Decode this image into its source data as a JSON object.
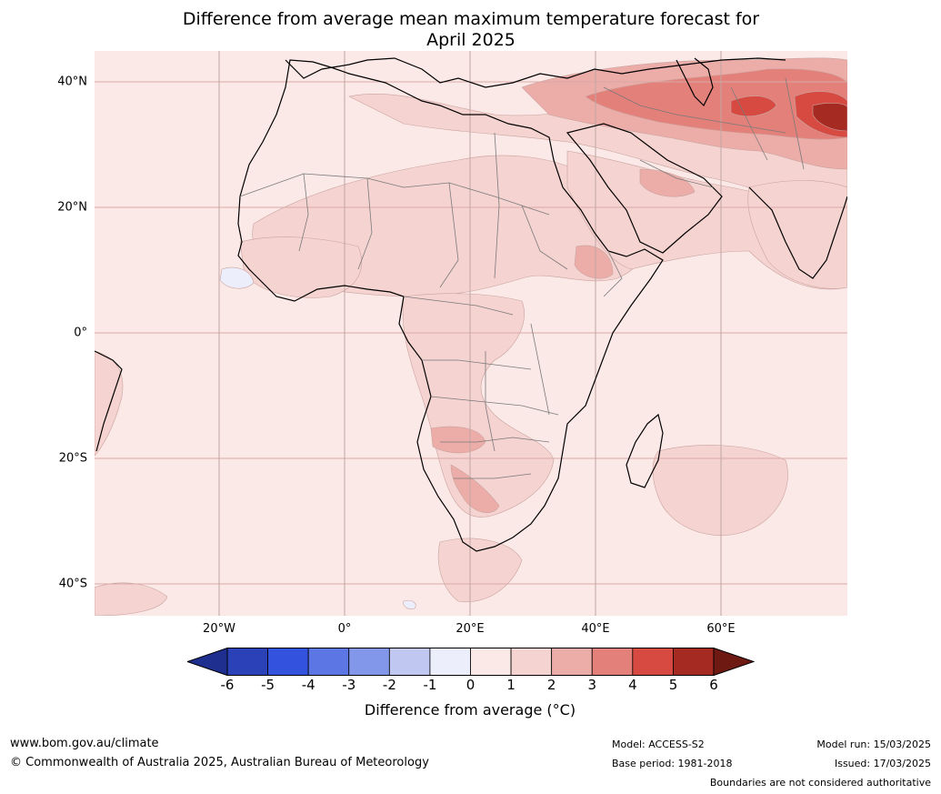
{
  "title": {
    "line1": "Difference from average mean maximum temperature forecast for",
    "line2": "April 2025"
  },
  "axes": {
    "lat_labels": [
      "40°N",
      "20°N",
      "0°",
      "20°S",
      "40°S"
    ],
    "lon_labels": [
      "20°W",
      "0°",
      "20°E",
      "40°E",
      "60°E"
    ]
  },
  "colorbar": {
    "ticks": [
      "-6",
      "-5",
      "-4",
      "-3",
      "-2",
      "-1",
      "0",
      "1",
      "2",
      "3",
      "4",
      "5",
      "6"
    ],
    "colors": [
      "#1f2f8f",
      "#2a41b8",
      "#3352dd",
      "#5c76e3",
      "#8397ea",
      "#c0c8f2",
      "#eceffb",
      "#fbe9e7",
      "#f5d3d0",
      "#ecaca8",
      "#e4807a",
      "#d64a41",
      "#a52a22",
      "#6e1a13"
    ],
    "label": "Difference from average (°C)"
  },
  "footer": {
    "website": "www.bom.gov.au/climate",
    "copyright": "© Commonwealth of Australia 2025, Australian Bureau of Meteorology",
    "model": "Model: ACCESS-S2",
    "base_period": "Base period: 1981-2018",
    "model_run": "Model run: 15/03/2025",
    "issued": "Issued: 17/03/2025",
    "disclaimer": "Boundaries are not considered authoritative"
  }
}
